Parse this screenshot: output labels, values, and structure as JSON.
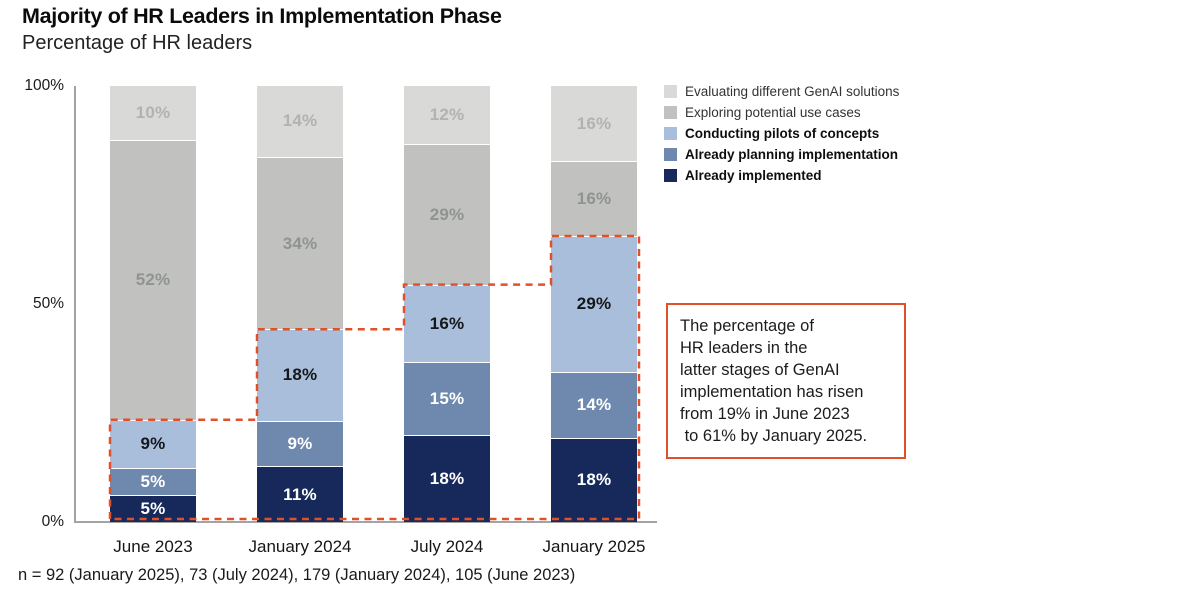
{
  "title": "Majority of HR Leaders in Implementation Phase",
  "subtitle": "Percentage of HR leaders",
  "footnote": "n = 92 (January 2025), 73 (July 2024), 179 (January 2024), 105 (June 2023)",
  "accent_color": "#e0512a",
  "annotation": {
    "lines": [
      "The percentage of",
      "HR leaders in the",
      "latter stages of GenAI",
      "implementation has risen",
      "from 19% in June 2023",
      " to 61% by January 2025."
    ]
  },
  "chart_data": {
    "type": "bar",
    "stacked": true,
    "title": "Majority of HR Leaders in Implementation Phase",
    "subtitle": "Percentage of HR leaders",
    "categories": [
      "June 2023",
      "January 2024",
      "July 2024",
      "January 2025"
    ],
    "series": [
      {
        "name": "Already implemented",
        "color": "#17295a",
        "label_color": "#ffffff",
        "bold_legend": true,
        "values": [
          5,
          11,
          18,
          18
        ]
      },
      {
        "name": "Already planning implementation",
        "color": "#6e88ae",
        "label_color": "#ffffff",
        "bold_legend": true,
        "values": [
          5,
          9,
          15,
          14
        ]
      },
      {
        "name": "Conducting pilots of concepts",
        "color": "#a9bedb",
        "label_color": "#15171a",
        "bold_legend": true,
        "values": [
          9,
          18,
          16,
          29
        ]
      },
      {
        "name": "Exploring potential use cases",
        "color": "#c1c2c0",
        "label_color": "#8f9391",
        "bold_legend": false,
        "values": [
          52,
          34,
          29,
          16
        ]
      },
      {
        "name": "Evaluating different GenAI solutions",
        "color": "#d9d9d7",
        "label_color": "#b1b3b1",
        "bold_legend": false,
        "values": [
          10,
          14,
          12,
          16
        ]
      }
    ],
    "y_ticks": [
      {
        "label": "100%",
        "value": 100
      },
      {
        "label": "50%",
        "value": 50
      },
      {
        "label": "0%",
        "value": 0
      }
    ],
    "ylim": [
      0,
      100
    ],
    "legend_position": "top-right",
    "value_label_format": "{v}%",
    "highlight_outline": "dashed orange step line enclosing the bottom three series (latter implementation stages) of all bars"
  }
}
